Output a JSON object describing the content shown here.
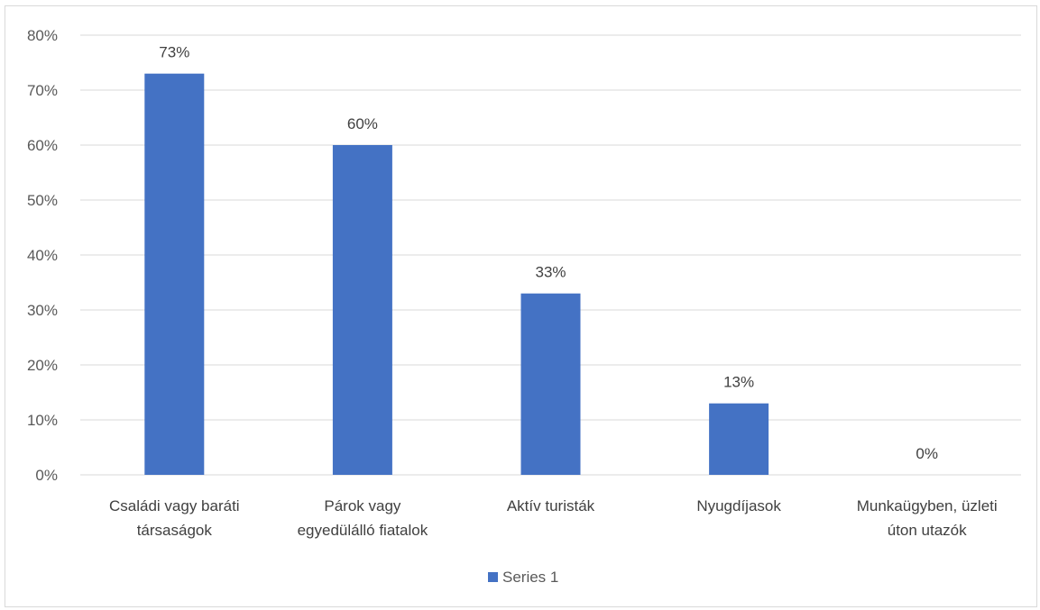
{
  "chart_data": {
    "type": "bar",
    "categories": [
      [
        "Családi vagy baráti",
        "társaságok"
      ],
      [
        "Párok vagy",
        "egyedülálló fiatalok"
      ],
      [
        "Aktív turisták"
      ],
      [
        "Nyugdíjasok"
      ],
      [
        "Munkaügyben, üzleti",
        "úton utazók"
      ]
    ],
    "series": [
      {
        "name": "Series 1",
        "values": [
          73,
          60,
          33,
          13,
          0
        ]
      }
    ],
    "data_labels": [
      "73%",
      "60%",
      "33%",
      "13%",
      "0%"
    ],
    "y_ticks": [
      "0%",
      "10%",
      "20%",
      "30%",
      "40%",
      "50%",
      "60%",
      "70%",
      "80%"
    ],
    "ylim": [
      0,
      80
    ],
    "y_unit": "%",
    "grid": true,
    "legend_position": "bottom",
    "colors": {
      "bar": "#4472C4",
      "grid": "#d9d9d9"
    }
  }
}
